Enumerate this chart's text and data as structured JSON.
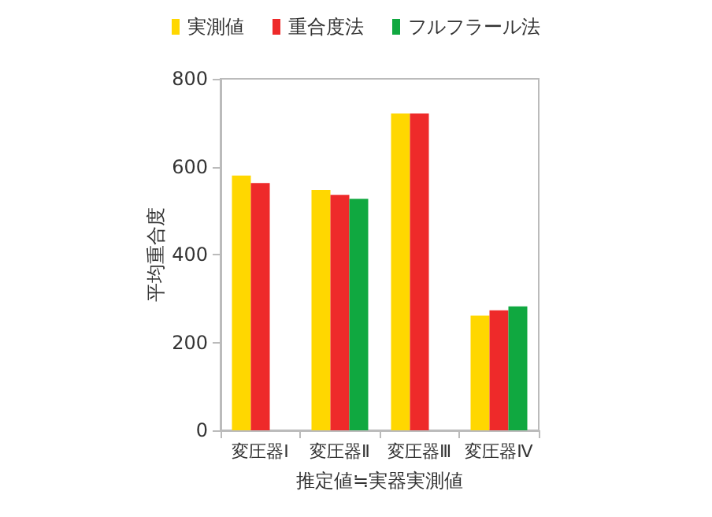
{
  "chart_data": {
    "type": "bar",
    "xlabel": "推定値≒実器実測値",
    "ylabel": "平均重合度",
    "categories": [
      "変圧器Ⅰ",
      "変圧器Ⅱ",
      "変圧器Ⅲ",
      "変圧器Ⅳ"
    ],
    "series": [
      {
        "name": "実測値",
        "color": "#ffd700",
        "values": [
          580,
          547,
          721,
          261
        ]
      },
      {
        "name": "重合度法",
        "color": "#ee2a2a",
        "values": [
          563,
          536,
          721,
          273
        ]
      },
      {
        "name": "フルフラール法",
        "color": "#10a840",
        "values": [
          null,
          527,
          null,
          282
        ]
      }
    ],
    "ylim": [
      0,
      800
    ],
    "yticks": [
      0,
      200,
      400,
      600,
      800
    ],
    "grid": false,
    "legend": "top"
  }
}
